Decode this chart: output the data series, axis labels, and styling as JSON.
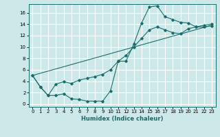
{
  "title": "",
  "xlabel": "Humidex (Indice chaleur)",
  "ylabel": "",
  "bg_color": "#cde8e8",
  "grid_color": "#b0d8d8",
  "line_color": "#1a6b6b",
  "marker_color": "#1a6b6b",
  "xlim": [
    -0.5,
    23.5
  ],
  "ylim": [
    -0.5,
    17.5
  ],
  "xticks": [
    0,
    1,
    2,
    3,
    4,
    5,
    6,
    7,
    8,
    9,
    10,
    11,
    12,
    13,
    14,
    15,
    16,
    17,
    18,
    19,
    20,
    21,
    22,
    23
  ],
  "yticks": [
    0,
    2,
    4,
    6,
    8,
    10,
    12,
    14,
    16
  ],
  "series1_x": [
    0,
    1,
    2,
    3,
    4,
    5,
    6,
    7,
    8,
    9,
    10,
    11,
    12,
    13,
    14,
    15,
    16,
    17,
    18,
    19,
    20,
    21,
    22,
    23
  ],
  "series1_y": [
    5.0,
    3.0,
    1.5,
    1.5,
    1.8,
    0.9,
    0.8,
    0.5,
    0.5,
    0.5,
    2.3,
    7.5,
    7.5,
    10.5,
    14.2,
    17.0,
    17.2,
    15.3,
    14.8,
    14.3,
    14.2,
    13.5,
    13.5,
    13.7
  ],
  "series2_x": [
    0,
    1,
    2,
    3,
    4,
    5,
    6,
    7,
    8,
    9,
    10,
    11,
    12,
    13,
    14,
    15,
    16,
    17,
    18,
    19,
    20,
    21,
    22,
    23
  ],
  "series2_y": [
    5.0,
    3.0,
    1.5,
    3.5,
    3.9,
    3.6,
    4.2,
    4.5,
    4.8,
    5.2,
    6.0,
    7.5,
    8.5,
    10.0,
    11.5,
    13.0,
    13.5,
    13.0,
    12.5,
    12.3,
    13.2,
    13.5,
    13.8,
    14.0
  ],
  "series3_x": [
    0,
    23
  ],
  "series3_y": [
    5.0,
    13.8
  ]
}
